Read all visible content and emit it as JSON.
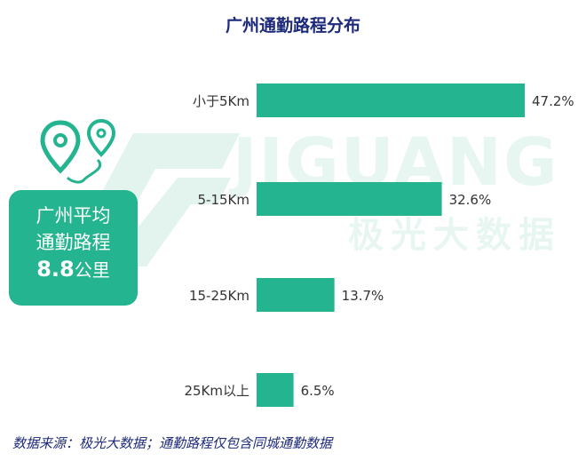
{
  "page": {
    "watermark_brand": "JIGUANG",
    "watermark_sub": "极光大数据",
    "footer": "数据来源：极光大数据；通勤路程仅包含同城通勤数据"
  },
  "stat": {
    "line1": "广州平均",
    "line2": "通勤路程",
    "value": "8.8",
    "unit": "公里"
  },
  "chart_data": {
    "type": "bar",
    "orientation": "horizontal",
    "title": "广州通勤路程分布",
    "categories": [
      "小于5Km",
      "5-15Km",
      "15-25Km",
      "25Km以上"
    ],
    "values": [
      47.2,
      32.6,
      13.7,
      6.5
    ],
    "value_labels": [
      "47.2%",
      "32.6%",
      "13.7%",
      "6.5%"
    ],
    "unit": "%",
    "xlim": [
      0,
      47.2
    ],
    "grid": false,
    "bar_color": "#24b48f"
  }
}
